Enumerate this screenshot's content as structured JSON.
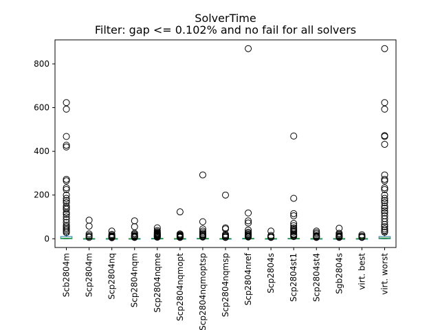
{
  "chart_data": {
    "type": "box",
    "title": "SolverTime",
    "subtitle": "Filter: gap <= 0.102% and no fail for all solvers",
    "xlabel": "",
    "ylabel": "",
    "ylim": [
      -40,
      910
    ],
    "yticks": [
      0,
      200,
      400,
      600,
      800
    ],
    "grid": false,
    "colors": {
      "box": "#1f77b4",
      "median": "#2ca02c",
      "outlier": "#000000",
      "axes": "#000000"
    },
    "categories": [
      "Scb2804m",
      "Scp2804m",
      "Scp2804nq",
      "Scp2804nqm",
      "Scp2804nqme",
      "Scp2804nqmopt",
      "Scp2804nqmoptsp",
      "Scp2804nqmsp",
      "Scp2804nref",
      "Scp2804s",
      "Scp2804st1",
      "Scp2804st4",
      "Sgb2804s",
      "virt. best",
      "virt. worst"
    ],
    "boxes": [
      {
        "q1": 0,
        "median": 2,
        "q3": 10,
        "whisker_low": 0,
        "whisker_high": 22,
        "outliers": [
          623,
          593,
          468,
          428,
          420,
          272,
          265,
          233,
          225,
          200,
          185,
          175,
          165,
          150,
          142,
          135,
          120,
          112,
          100,
          88,
          75,
          62,
          55,
          48,
          42,
          35,
          28
        ]
      },
      {
        "q1": 0,
        "median": 0.5,
        "q3": 1,
        "whisker_low": 0,
        "whisker_high": 3,
        "outliers": [
          85,
          58,
          22,
          15,
          10,
          6
        ]
      },
      {
        "q1": 0,
        "median": 0.5,
        "q3": 1,
        "whisker_low": 0,
        "whisker_high": 3,
        "outliers": [
          35,
          20,
          15,
          12,
          10,
          8,
          6,
          5
        ]
      },
      {
        "q1": 0,
        "median": 0.5,
        "q3": 1,
        "whisker_low": 0,
        "whisker_high": 3,
        "outliers": [
          82,
          55,
          25,
          20,
          15,
          12,
          10,
          8,
          6
        ]
      },
      {
        "q1": 0,
        "median": 0.5,
        "q3": 2,
        "whisker_low": 0,
        "whisker_high": 5,
        "outliers": [
          50,
          38,
          32,
          28,
          25,
          22,
          20,
          18,
          16,
          14,
          12,
          10,
          8,
          7
        ]
      },
      {
        "q1": 0,
        "median": 0.5,
        "q3": 1,
        "whisker_low": 0,
        "whisker_high": 3,
        "outliers": [
          123,
          22,
          18,
          15,
          12,
          10,
          8,
          6
        ]
      },
      {
        "q1": 0,
        "median": 0.5,
        "q3": 2,
        "whisker_low": 0,
        "whisker_high": 5,
        "outliers": [
          292,
          78,
          45,
          35,
          28,
          22,
          18,
          14,
          10,
          8
        ]
      },
      {
        "q1": 0,
        "median": 0.5,
        "q3": 1,
        "whisker_low": 0,
        "whisker_high": 3,
        "outliers": [
          200,
          50,
          45,
          20,
          15,
          12,
          8,
          6
        ]
      },
      {
        "q1": 0,
        "median": 0.5,
        "q3": 2,
        "whisker_low": 0,
        "whisker_high": 5,
        "outliers": [
          870,
          118,
          82,
          72,
          40,
          30,
          25,
          20,
          16,
          12,
          10,
          8
        ]
      },
      {
        "q1": 0,
        "median": 0.5,
        "q3": 1,
        "whisker_low": 0,
        "whisker_high": 3,
        "outliers": [
          35,
          15,
          10,
          8,
          6
        ]
      },
      {
        "q1": 0,
        "median": 0.5,
        "q3": 2,
        "whisker_low": 0,
        "whisker_high": 5,
        "outliers": [
          470,
          185,
          115,
          105,
          70,
          60,
          50,
          45,
          40,
          35,
          30,
          22,
          18,
          14,
          10
        ]
      },
      {
        "q1": 0,
        "median": 0.5,
        "q3": 1,
        "whisker_low": 0,
        "whisker_high": 3,
        "outliers": [
          35,
          28,
          22,
          15,
          12,
          10,
          8,
          6
        ]
      },
      {
        "q1": 0,
        "median": 0.5,
        "q3": 1,
        "whisker_low": 0,
        "whisker_high": 3,
        "outliers": [
          48,
          25,
          20,
          15,
          12,
          10,
          8,
          6
        ]
      },
      {
        "q1": 0,
        "median": 0.5,
        "q3": 1,
        "whisker_low": 0,
        "whisker_high": 3,
        "outliers": [
          18,
          12,
          8,
          6
        ]
      },
      {
        "q1": 0,
        "median": 3,
        "q3": 10,
        "whisker_low": 0,
        "whisker_high": 22,
        "outliers": [
          870,
          623,
          593,
          472,
          468,
          432,
          292,
          272,
          265,
          233,
          225,
          200,
          185,
          175,
          165,
          150,
          140,
          128,
          118,
          105,
          92,
          78,
          65,
          55,
          45,
          38,
          30
        ]
      }
    ]
  }
}
